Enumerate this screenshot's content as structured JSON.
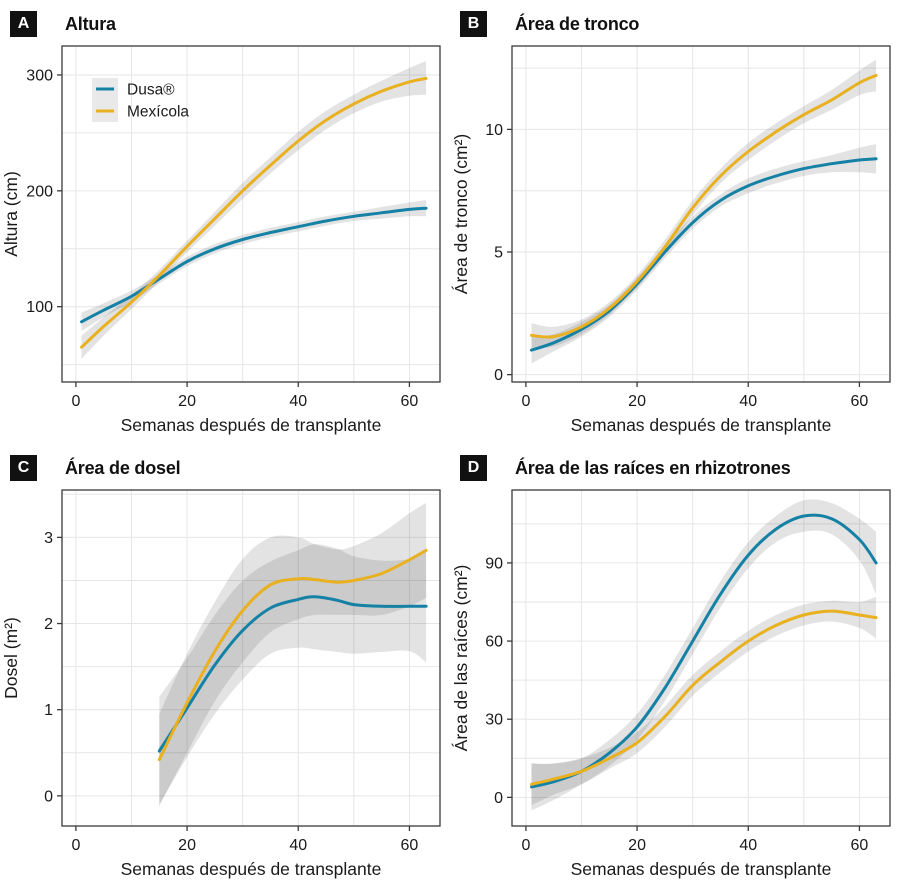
{
  "figure": {
    "x_axis_title": "Semanas después de transplante",
    "style": {
      "series_blue": "#1581a5",
      "series_yellow": "#e9b020",
      "band_color": "#404040",
      "band_opacity": 0.15,
      "grid_color": "#e6e6e6",
      "border_color": "#3a3a3a",
      "text_color": "#1a1a1a",
      "legend_key_fill": "#e9e9e9",
      "tag_bg": "#111111",
      "tag_text": "#ffffff"
    },
    "legend": {
      "items": [
        {
          "label": "Dusa®",
          "color": "#1581a5"
        },
        {
          "label": "Mexícola",
          "color": "#e9b020"
        }
      ]
    }
  },
  "chart_data": [
    {
      "type": "line",
      "tag": "A",
      "title": "Altura",
      "xlabel": "Semanas después de transplante",
      "ylabel": "Altura (cm)",
      "xlim": [
        -2.5,
        65.5
      ],
      "ylim": [
        35,
        325
      ],
      "xticks": [
        0,
        20,
        40,
        60
      ],
      "yticks": [
        100,
        200,
        300
      ],
      "xgrid": [
        0,
        10,
        20,
        30,
        40,
        50,
        60
      ],
      "ygrid": [
        50,
        100,
        150,
        200,
        250,
        300
      ],
      "x": [
        1,
        5,
        10,
        15,
        20,
        25,
        30,
        35,
        40,
        45,
        50,
        55,
        60,
        63
      ],
      "legend_pos": {
        "x": 30,
        "y": 32
      },
      "series": [
        {
          "name": "Dusa®",
          "color": "#1581a5",
          "values": [
            87,
            97,
            109,
            124,
            139,
            150,
            158,
            164,
            169,
            174,
            178,
            181,
            184,
            185
          ],
          "band_lo": [
            79,
            91,
            104,
            120,
            135,
            146,
            154,
            160,
            165,
            170,
            174,
            176,
            178,
            178
          ],
          "band_hi": [
            95,
            103,
            114,
            128,
            143,
            154,
            162,
            168,
            173,
            178,
            182,
            186,
            190,
            192
          ]
        },
        {
          "name": "Mexícola",
          "color": "#e9b020",
          "values": [
            65,
            83,
            104,
            127,
            152,
            176,
            200,
            222,
            243,
            261,
            275,
            286,
            294,
            297
          ],
          "band_lo": [
            55,
            75,
            98,
            122,
            147,
            170,
            193,
            215,
            235,
            253,
            267,
            277,
            282,
            283
          ],
          "band_hi": [
            75,
            91,
            110,
            132,
            157,
            182,
            207,
            229,
            251,
            269,
            283,
            295,
            306,
            312
          ]
        }
      ]
    },
    {
      "type": "line",
      "tag": "B",
      "title": "Área de tronco",
      "xlabel": "Semanas después de transplante",
      "ylabel": "Área de tronco (cm²)",
      "xlim": [
        -2.5,
        65.5
      ],
      "ylim": [
        -0.3,
        13.4
      ],
      "xticks": [
        0,
        20,
        40,
        60
      ],
      "yticks": [
        0,
        5,
        10
      ],
      "xgrid": [
        0,
        10,
        20,
        30,
        40,
        50,
        60
      ],
      "ygrid": [
        0,
        2.5,
        5,
        7.5,
        10,
        12.5
      ],
      "x": [
        1,
        5,
        10,
        15,
        20,
        25,
        30,
        35,
        40,
        45,
        50,
        55,
        60,
        63
      ],
      "legend_pos": null,
      "series": [
        {
          "name": "Dusa®",
          "color": "#1581a5",
          "values": [
            1.0,
            1.3,
            1.85,
            2.6,
            3.7,
            5.0,
            6.2,
            7.1,
            7.7,
            8.1,
            8.4,
            8.6,
            8.75,
            8.8
          ],
          "band_lo": [
            0.45,
            0.95,
            1.55,
            2.35,
            3.45,
            4.75,
            5.95,
            6.85,
            7.4,
            7.8,
            8.1,
            8.25,
            8.25,
            8.2
          ],
          "band_hi": [
            1.55,
            1.65,
            2.15,
            2.85,
            3.95,
            5.25,
            6.45,
            7.35,
            8.0,
            8.4,
            8.7,
            8.95,
            9.25,
            9.4
          ]
        },
        {
          "name": "Mexícola",
          "color": "#e9b020",
          "values": [
            1.6,
            1.55,
            1.95,
            2.7,
            3.8,
            5.2,
            6.8,
            8.1,
            9.1,
            9.9,
            10.6,
            11.2,
            11.9,
            12.2
          ],
          "band_lo": [
            1.1,
            1.15,
            1.65,
            2.45,
            3.55,
            4.9,
            6.5,
            7.8,
            8.75,
            9.55,
            10.25,
            10.8,
            11.4,
            11.55
          ],
          "band_hi": [
            2.1,
            1.95,
            2.25,
            2.95,
            4.05,
            5.5,
            7.1,
            8.4,
            9.45,
            10.25,
            10.95,
            11.6,
            12.4,
            12.85
          ]
        }
      ]
    },
    {
      "type": "line",
      "tag": "C",
      "title": "Área de dosel",
      "xlabel": "Semanas después de transplante",
      "ylabel": "Dosel (m²)",
      "xlim": [
        -2.5,
        65.5
      ],
      "ylim": [
        -0.35,
        3.55
      ],
      "xticks": [
        0,
        20,
        40,
        60
      ],
      "yticks": [
        0,
        1,
        2,
        3
      ],
      "xgrid": [
        0,
        10,
        20,
        30,
        40,
        50,
        60
      ],
      "ygrid": [
        0,
        0.5,
        1,
        1.5,
        2,
        2.5,
        3,
        3.5
      ],
      "x": [
        15,
        20,
        25,
        30,
        35,
        40,
        43,
        47,
        50,
        55,
        60,
        63
      ],
      "legend_pos": null,
      "series": [
        {
          "name": "Dusa®",
          "color": "#1581a5",
          "values": [
            0.52,
            1.02,
            1.52,
            1.92,
            2.18,
            2.28,
            2.31,
            2.27,
            2.22,
            2.2,
            2.2,
            2.2
          ],
          "band_lo": [
            -0.1,
            0.45,
            0.95,
            1.35,
            1.65,
            1.72,
            1.7,
            1.67,
            1.65,
            1.67,
            1.68,
            1.55
          ],
          "band_hi": [
            1.15,
            1.6,
            2.1,
            2.5,
            2.72,
            2.85,
            2.92,
            2.87,
            2.78,
            2.73,
            2.75,
            2.85
          ]
        },
        {
          "name": "Mexícola",
          "color": "#e9b020",
          "values": [
            0.42,
            1.08,
            1.68,
            2.15,
            2.45,
            2.52,
            2.51,
            2.48,
            2.5,
            2.58,
            2.74,
            2.85
          ],
          "band_lo": [
            -0.12,
            0.5,
            1.1,
            1.55,
            1.9,
            2.05,
            2.1,
            2.1,
            2.1,
            2.1,
            2.2,
            2.3
          ],
          "band_hi": [
            0.95,
            1.65,
            2.25,
            2.75,
            3.0,
            3.0,
            2.92,
            2.86,
            2.9,
            3.05,
            3.28,
            3.4
          ]
        }
      ]
    },
    {
      "type": "line",
      "tag": "D",
      "title": "Área de las raíces en rhizotrones",
      "xlabel": "Semanas después de transplante",
      "ylabel": "Área de las raíces (cm²)",
      "xlim": [
        -2.5,
        65.5
      ],
      "ylim": [
        -11,
        118
      ],
      "xticks": [
        0,
        20,
        40,
        60
      ],
      "yticks": [
        0,
        30,
        60,
        90
      ],
      "xgrid": [
        0,
        10,
        20,
        30,
        40,
        50,
        60
      ],
      "ygrid": [
        0,
        15,
        30,
        45,
        60,
        75,
        90,
        105
      ],
      "x": [
        1,
        5,
        10,
        15,
        20,
        25,
        30,
        35,
        40,
        45,
        50,
        55,
        60,
        63
      ],
      "legend_pos": null,
      "series": [
        {
          "name": "Dusa®",
          "color": "#1581a5",
          "values": [
            4,
            6,
            10,
            17,
            27,
            42,
            60,
            78,
            93,
            103,
            108,
            107,
            99,
            90
          ],
          "band_lo": [
            -5,
            -1,
            5,
            12,
            22,
            37,
            55,
            73,
            88,
            98,
            102,
            101,
            91,
            78
          ],
          "band_hi": [
            13,
            13,
            15,
            22,
            32,
            47,
            65,
            83,
            98,
            108,
            114,
            113,
            107,
            102
          ]
        },
        {
          "name": "Mexícola",
          "color": "#e9b020",
          "values": [
            5,
            7,
            10,
            15,
            21,
            31,
            43,
            52,
            60,
            66,
            70,
            71.5,
            70,
            69
          ],
          "band_lo": [
            -3,
            1,
            5,
            11,
            17,
            27,
            39,
            48,
            56,
            62,
            66,
            67.5,
            65,
            61
          ],
          "band_hi": [
            13,
            13,
            15,
            19,
            25,
            35,
            47,
            56,
            64,
            70,
            74,
            75.5,
            75,
            77
          ]
        }
      ]
    }
  ]
}
